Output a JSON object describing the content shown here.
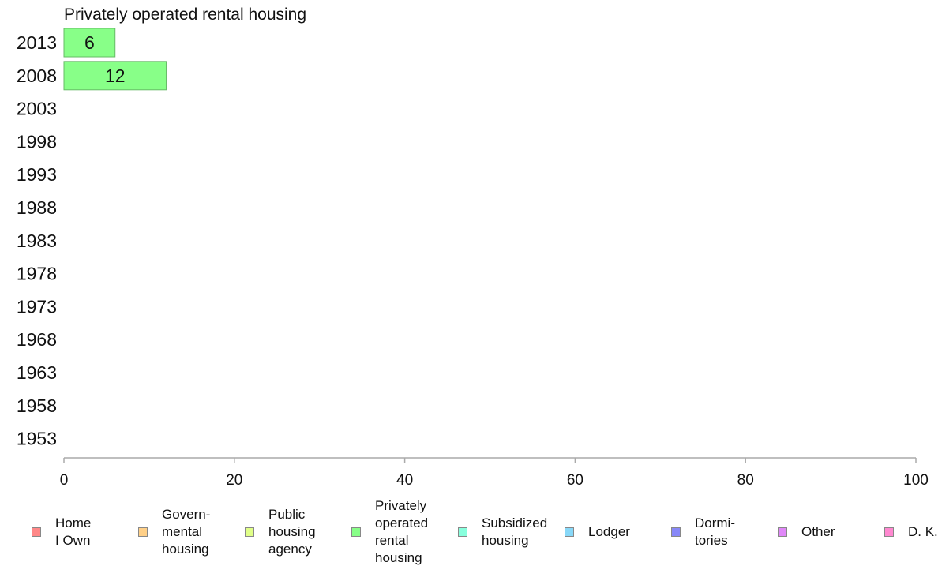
{
  "chart_data": {
    "type": "bar",
    "orientation": "horizontal",
    "title": "Privately operated rental housing",
    "categories": [
      "2013",
      "2008",
      "2003",
      "1998",
      "1993",
      "1988",
      "1983",
      "1978",
      "1973",
      "1968",
      "1963",
      "1958",
      "1953"
    ],
    "series": [
      {
        "name": "Privately operated rental housing",
        "values": [
          6,
          12,
          null,
          null,
          null,
          null,
          null,
          null,
          null,
          null,
          null,
          null,
          null
        ]
      }
    ],
    "data_labels": [
      "6",
      "12",
      "",
      "",
      "",
      "",
      "",
      "",
      "",
      "",
      "",
      "",
      ""
    ],
    "xlabel": "",
    "ylabel": "",
    "xlim": [
      0,
      100
    ],
    "xticks": [
      0,
      20,
      40,
      60,
      80,
      100
    ],
    "xtick_labels": [
      "0",
      "20",
      "40",
      "60",
      "80",
      "100"
    ],
    "grid": false,
    "legend_position": "bottom",
    "bar_color": "#88ff88",
    "legend": [
      {
        "label": "Home\nI Own",
        "color": "#ff8888"
      },
      {
        "label": "Govern-\nmental\n housing",
        "color": "#ffd088"
      },
      {
        "label": "Public\nhousing\nagency",
        "color": "#e0ff88"
      },
      {
        "label": "Privately\noperated\nrental\nhousing",
        "color": "#88ff88"
      },
      {
        "label": "Subsidized\n housing",
        "color": "#88ffdd"
      },
      {
        "label": "Lodger",
        "color": "#88d8f8"
      },
      {
        "label": "Dormi-\ntories",
        "color": "#8888f8"
      },
      {
        "label": "Other",
        "color": "#e088f8"
      },
      {
        "label": "D. K.",
        "color": "#ff88d0"
      }
    ]
  }
}
